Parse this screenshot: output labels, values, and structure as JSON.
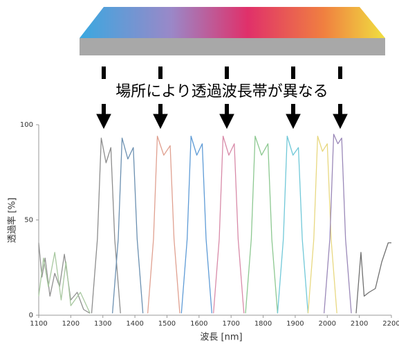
{
  "chart_data": {
    "type": "line",
    "banner": "場所により透過波長帯が異なる",
    "x_label": "波長 [nm]",
    "y_label": "透過率 [%]",
    "xlim": [
      1100,
      2200
    ],
    "xticks": [
      1100,
      1200,
      1300,
      1400,
      1500,
      1600,
      1700,
      1800,
      1900,
      2000,
      2100,
      2200
    ],
    "ylim": [
      0,
      100
    ],
    "yticks": [
      0,
      50,
      100
    ],
    "series": [
      {
        "color": "#8c8c8c",
        "x": [
          1265,
          1283,
          1295,
          1310,
          1325,
          1337,
          1355
        ],
        "values": [
          1,
          40,
          93,
          80,
          88,
          40,
          1
        ]
      },
      {
        "color": "#6a8fb0",
        "x": [
          1330,
          1348,
          1360,
          1378,
          1395,
          1407,
          1425
        ],
        "values": [
          1,
          40,
          93,
          82,
          88,
          40,
          1
        ]
      },
      {
        "color": "#e0a090",
        "x": [
          1440,
          1458,
          1470,
          1490,
          1510,
          1522,
          1540
        ],
        "values": [
          1,
          40,
          94,
          84,
          89,
          40,
          1
        ]
      },
      {
        "color": "#5e9bd6",
        "x": [
          1545,
          1563,
          1575,
          1593,
          1610,
          1622,
          1640
        ],
        "values": [
          1,
          40,
          94,
          84,
          90,
          40,
          1
        ]
      },
      {
        "color": "#d88aa8",
        "x": [
          1645,
          1663,
          1675,
          1693,
          1710,
          1722,
          1740
        ],
        "values": [
          1,
          40,
          94,
          84,
          90,
          40,
          1
        ]
      },
      {
        "color": "#8cc890",
        "x": [
          1745,
          1763,
          1775,
          1795,
          1815,
          1827,
          1845
        ],
        "values": [
          1,
          40,
          94,
          84,
          90,
          40,
          1
        ]
      },
      {
        "color": "#70c8d8",
        "x": [
          1845,
          1863,
          1875,
          1893,
          1910,
          1922,
          1940
        ],
        "values": [
          1,
          40,
          94,
          84,
          88,
          40,
          1
        ]
      },
      {
        "color": "#e8d880",
        "x": [
          1940,
          1958,
          1970,
          1985,
          2000,
          2012,
          2030
        ],
        "values": [
          1,
          40,
          94,
          86,
          90,
          40,
          1
        ]
      },
      {
        "color": "#9a88b8",
        "x": [
          1990,
          2008,
          2020,
          2033,
          2045,
          2057,
          2075
        ],
        "values": [
          1,
          40,
          95,
          90,
          93,
          40,
          1
        ]
      },
      {
        "color": "#909090",
        "x": [
          1100,
          1110,
          1120,
          1135,
          1150,
          1165,
          1180,
          1200,
          1220,
          1240,
          1260
        ],
        "values": [
          38,
          20,
          30,
          10,
          22,
          15,
          32,
          8,
          12,
          3,
          1
        ]
      },
      {
        "color": "#a8c8a0",
        "x": [
          1100,
          1115,
          1130,
          1150,
          1170,
          1185,
          1200,
          1230,
          1260
        ],
        "values": [
          10,
          30,
          15,
          33,
          8,
          28,
          5,
          12,
          1
        ]
      },
      {
        "color": "#707070",
        "x": [
          2090,
          2105,
          2115,
          2130,
          2150,
          2170,
          2190,
          2200
        ],
        "values": [
          1,
          33,
          10,
          12,
          14,
          28,
          38,
          38
        ]
      }
    ]
  }
}
